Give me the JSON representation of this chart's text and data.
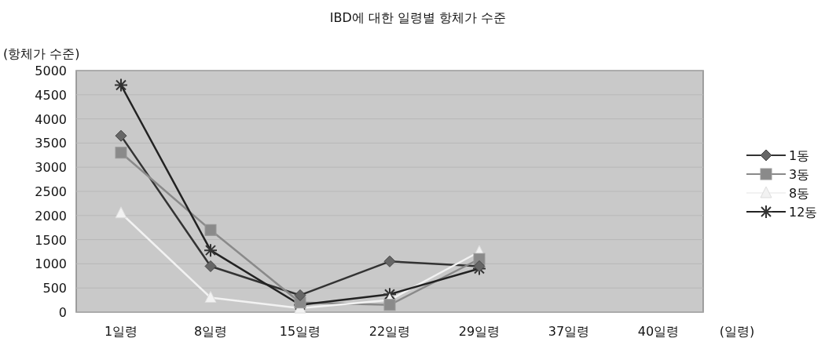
{
  "chart_data": {
    "type": "line",
    "title": "IBD에 대한 일령별 항체가 수준",
    "xlabel": "(일령)",
    "ylabel": "(항체가 수준)",
    "categories": [
      "1일령",
      "8일령",
      "15일령",
      "22일령",
      "29일령",
      "37일령",
      "40일령"
    ],
    "ylim": [
      0,
      5000
    ],
    "yticks": [
      0,
      500,
      1000,
      1500,
      2000,
      2500,
      3000,
      3500,
      4000,
      4500,
      5000
    ],
    "grid": "y",
    "legend": "right",
    "series": [
      {
        "name": "1동",
        "color": "#333333",
        "marker": "diamond",
        "values": [
          3650,
          950,
          350,
          1050,
          950,
          null,
          null
        ]
      },
      {
        "name": "3동",
        "color": "#8a8a8a",
        "marker": "square",
        "values": [
          3300,
          1700,
          200,
          150,
          1100,
          null,
          null
        ]
      },
      {
        "name": "8동",
        "color": "#f2f2f2",
        "marker": "triangle",
        "values": [
          2050,
          300,
          80,
          250,
          1250,
          null,
          null
        ]
      },
      {
        "name": "12동",
        "color": "#222222",
        "marker": "cross",
        "values": [
          4700,
          1280,
          150,
          370,
          900,
          null,
          null
        ]
      }
    ]
  }
}
